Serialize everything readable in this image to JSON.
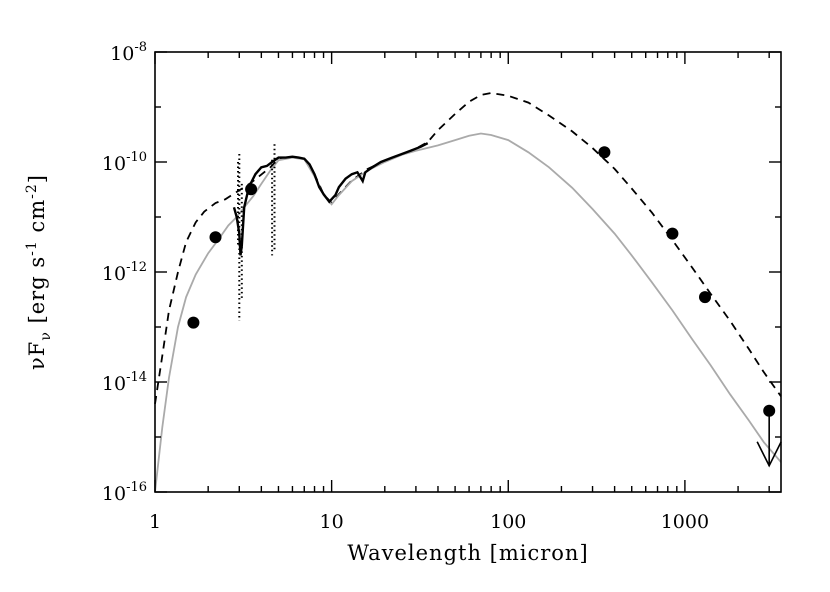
{
  "chart_data": {
    "type": "line",
    "xscale": "log",
    "yscale": "log",
    "xlim": [
      1,
      3500
    ],
    "ylim": [
      1e-16,
      1e-08
    ],
    "xlabel": "Wavelength [micron]",
    "ylabel": {
      "prefix": "νF",
      "subscript": "ν",
      "unit_open": " [erg s",
      "sup1": "-1",
      "unit_mid": " cm",
      "sup2": "-2",
      "unit_close": "]"
    },
    "x_ticks": [
      {
        "value": 1,
        "label": "1"
      },
      {
        "value": 10,
        "label": "10"
      },
      {
        "value": 100,
        "label": "100"
      },
      {
        "value": 1000,
        "label": "1000"
      }
    ],
    "y_ticks": [
      {
        "value": 1e-16,
        "base": "10",
        "exp": "-16"
      },
      {
        "value": 1e-14,
        "base": "10",
        "exp": "-14"
      },
      {
        "value": 1e-12,
        "base": "10",
        "exp": "-12"
      },
      {
        "value": 1e-10,
        "base": "10",
        "exp": "-10"
      },
      {
        "value": 1e-08,
        "base": "10",
        "exp": "-8"
      }
    ],
    "series": [
      {
        "name": "dashed-model",
        "style": "dashed",
        "color": "#000000",
        "points": [
          [
            1.0,
            4e-15
          ],
          [
            1.1,
            3e-14
          ],
          [
            1.2,
            2e-13
          ],
          [
            1.35,
            1e-12
          ],
          [
            1.5,
            3.5e-12
          ],
          [
            1.7,
            8e-12
          ],
          [
            1.9,
            1.25e-11
          ],
          [
            2.2,
            1.8e-11
          ],
          [
            2.5,
            2.1e-11
          ],
          [
            3.5,
            4.2e-11
          ],
          [
            4.5,
            8e-11
          ],
          [
            5.0,
            1.15e-10
          ],
          [
            6.0,
            1.25e-10
          ],
          [
            7.0,
            1.15e-10
          ],
          [
            8.0,
            6e-11
          ],
          [
            9.0,
            2.6e-11
          ],
          [
            10.0,
            1.8e-11
          ],
          [
            11.0,
            2.6e-11
          ],
          [
            13.0,
            4.6e-11
          ],
          [
            16.0,
            7.5e-11
          ],
          [
            20.0,
            1.05e-10
          ],
          [
            25.0,
            1.4e-10
          ],
          [
            30.0,
            1.75e-10
          ],
          [
            35.0,
            2.3e-10
          ],
          [
            40.0,
            3.8e-10
          ],
          [
            50.0,
            7.5e-10
          ],
          [
            60.0,
            1.25e-09
          ],
          [
            70.0,
            1.65e-09
          ],
          [
            80.0,
            1.8e-09
          ],
          [
            100.0,
            1.6e-09
          ],
          [
            130.0,
            1.2e-09
          ],
          [
            170.0,
            7e-10
          ],
          [
            230.0,
            3.6e-10
          ],
          [
            300.0,
            1.8e-10
          ],
          [
            400.0,
            7.5e-11
          ],
          [
            500.0,
            3.3e-11
          ],
          [
            650.0,
            1.2e-11
          ],
          [
            850.0,
            3.8e-12
          ],
          [
            1100.0,
            1.2e-12
          ],
          [
            1400.0,
            4e-13
          ],
          [
            1800.0,
            1.3e-13
          ],
          [
            2300.0,
            4e-14
          ],
          [
            2800.0,
            1.5e-14
          ],
          [
            3500.0,
            5.5e-15
          ]
        ]
      },
      {
        "name": "gray-model",
        "style": "solid",
        "color": "#aaaaaa",
        "points": [
          [
            1.0,
            1e-16
          ],
          [
            1.1,
            1.5e-15
          ],
          [
            1.2,
            1.2e-14
          ],
          [
            1.35,
            1e-13
          ],
          [
            1.5,
            3.5e-13
          ],
          [
            1.7,
            9e-13
          ],
          [
            2.0,
            2.2e-12
          ],
          [
            2.3,
            4e-12
          ],
          [
            2.6,
            7e-12
          ],
          [
            2.9,
            1e-11
          ],
          [
            3.2,
            1.5e-11
          ],
          [
            3.6,
            2.4e-11
          ],
          [
            4.0,
            4e-11
          ],
          [
            4.5,
            7e-11
          ],
          [
            5.0,
            1.08e-10
          ],
          [
            6.0,
            1.2e-10
          ],
          [
            7.0,
            1.12e-10
          ],
          [
            8.0,
            5.5e-11
          ],
          [
            9.0,
            2.5e-11
          ],
          [
            10.0,
            1.7e-11
          ],
          [
            11.0,
            2.5e-11
          ],
          [
            13.0,
            4.5e-11
          ],
          [
            16.0,
            7e-11
          ],
          [
            20.0,
            1e-10
          ],
          [
            25.0,
            1.35e-10
          ],
          [
            30.0,
            1.6e-10
          ],
          [
            40.0,
            2e-10
          ],
          [
            50.0,
            2.5e-10
          ],
          [
            60.0,
            3e-10
          ],
          [
            70.0,
            3.3e-10
          ],
          [
            80.0,
            3.1e-10
          ],
          [
            100.0,
            2.5e-10
          ],
          [
            130.0,
            1.5e-10
          ],
          [
            170.0,
            8e-11
          ],
          [
            230.0,
            3.4e-11
          ],
          [
            300.0,
            1.4e-11
          ],
          [
            400.0,
            5e-12
          ],
          [
            500.0,
            2e-12
          ],
          [
            650.0,
            6.5e-13
          ],
          [
            850.0,
            2e-13
          ],
          [
            1100.0,
            6e-14
          ],
          [
            1400.0,
            2e-14
          ],
          [
            1800.0,
            6e-15
          ],
          [
            2300.0,
            2e-15
          ],
          [
            2800.0,
            8e-16
          ],
          [
            3500.0,
            3.5e-16
          ]
        ]
      },
      {
        "name": "spectrum",
        "style": "solid",
        "color": "#000000",
        "points": [
          [
            2.8,
            1.5e-11
          ],
          [
            2.9,
            1e-11
          ],
          [
            3.0,
            5e-12
          ],
          [
            3.05,
            2e-12
          ],
          [
            3.1,
            3e-12
          ],
          [
            3.2,
            1.5e-11
          ],
          [
            3.4,
            3.5e-11
          ],
          [
            3.7,
            6e-11
          ],
          [
            4.0,
            8e-11
          ],
          [
            4.3,
            8.5e-11
          ],
          [
            4.6,
            1e-10
          ],
          [
            5.0,
            1.2e-10
          ],
          [
            5.5,
            1.2e-10
          ],
          [
            6.0,
            1.25e-10
          ],
          [
            6.5,
            1.2e-10
          ],
          [
            7.0,
            1.15e-10
          ],
          [
            7.5,
            9e-11
          ],
          [
            8.0,
            6e-11
          ],
          [
            8.5,
            3.5e-11
          ],
          [
            9.0,
            2.6e-11
          ],
          [
            9.7,
            1.9e-11
          ],
          [
            10.5,
            2.5e-11
          ],
          [
            11.0,
            3.5e-11
          ],
          [
            12.0,
            5e-11
          ],
          [
            13.0,
            6e-11
          ],
          [
            14.0,
            6.5e-11
          ],
          [
            15.0,
            4.5e-11
          ],
          [
            15.5,
            6.5e-11
          ],
          [
            17.0,
            8e-11
          ],
          [
            19.0,
            1e-10
          ],
          [
            22.0,
            1.2e-10
          ],
          [
            25.0,
            1.4e-10
          ],
          [
            28.0,
            1.6e-10
          ],
          [
            32.0,
            1.9e-10
          ],
          [
            35.0,
            2.2e-10
          ]
        ]
      }
    ],
    "scatter_segments": [
      {
        "x": 3.0,
        "y_from": 1.4e-10,
        "y_to": 1.3e-13
      },
      {
        "x": 3.1,
        "y_from": 4e-11,
        "y_to": 3.2e-13
      },
      {
        "x": 2.95,
        "y_from": 1e-10,
        "y_to": 3e-12
      },
      {
        "x": 4.6,
        "y_from": 1.1e-10,
        "y_to": 2e-12
      },
      {
        "x": 4.75,
        "y_from": 2.1e-10,
        "y_to": 2.5e-12
      }
    ],
    "photometry": [
      {
        "x": 1.65,
        "y": 1.2e-13
      },
      {
        "x": 2.2,
        "y": 4.3e-12
      },
      {
        "x": 3.5,
        "y": 3.2e-11
      },
      {
        "x": 350,
        "y": 1.5e-10
      },
      {
        "x": 850,
        "y": 5e-12
      },
      {
        "x": 1300,
        "y": 3.5e-13
      },
      {
        "x": 3000,
        "y": 3e-15
      }
    ],
    "upper_limit": {
      "x": 3000,
      "y_from": 3e-15,
      "y_to": 3e-16
    }
  }
}
